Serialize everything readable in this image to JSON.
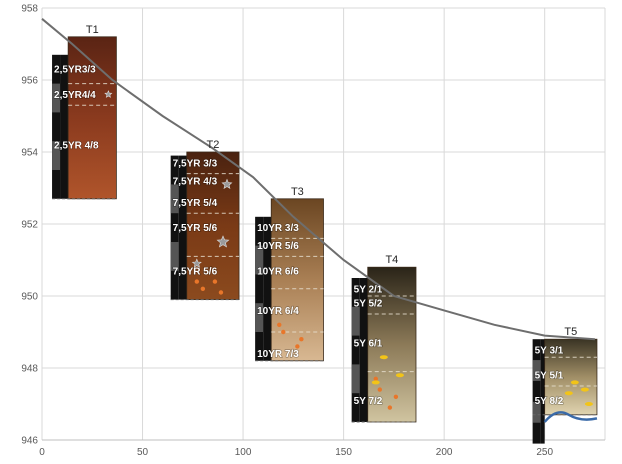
{
  "chart_data": {
    "type": "line",
    "title": "",
    "xlabel": "",
    "ylabel": "",
    "xlim": [
      0,
      280
    ],
    "ylim": [
      946,
      958
    ],
    "x_ticks": [
      "0",
      "50",
      "100",
      "150",
      "200",
      "250"
    ],
    "y_ticks": [
      "946",
      "948",
      "950",
      "952",
      "954",
      "956",
      "958"
    ],
    "grid": true,
    "series": [
      {
        "x": [
          0,
          15,
          35,
          60,
          85,
          105,
          125,
          150,
          175,
          200,
          225,
          250,
          275
        ],
        "y": [
          957.7,
          957.0,
          956.0,
          955.0,
          954.1,
          953.3,
          952.2,
          951.0,
          950.0,
          949.6,
          949.2,
          948.9,
          948.8
        ]
      }
    ],
    "columns": [
      {
        "label": "T1",
        "x_left": 13,
        "x_right": 37,
        "top": 957.2,
        "bottom": 952.7,
        "colors": [
          "#5a2414",
          "#8a3a1e",
          "#b0552b"
        ],
        "bar": {
          "x": 5,
          "top": 956.7,
          "bottom": 952.7
        },
        "horizons": [
          {
            "label": "2,5YR3/3",
            "y": 956.3
          },
          {
            "label": "2,5YR4/4",
            "y": 955.6
          },
          {
            "label": "2,5YR 4/8",
            "y": 954.2
          }
        ],
        "boundaries": [
          955.9,
          955.3
        ]
      },
      {
        "label": "T2",
        "x_left": 72,
        "x_right": 98,
        "top": 954.0,
        "bottom": 949.9,
        "colors": [
          "#4a2210",
          "#7a3a16",
          "#8b4a1e"
        ],
        "bar": {
          "x": 64,
          "top": 953.9,
          "bottom": 949.9
        },
        "horizons": [
          {
            "label": "7,5YR 3/3",
            "y": 953.7
          },
          {
            "label": "7,5YR 4/3",
            "y": 953.2
          },
          {
            "label": "7,5YR 5/4",
            "y": 952.6
          },
          {
            "label": "7,5YR 5/6",
            "y": 951.9
          },
          {
            "label": "7,5YR 5/6",
            "y": 950.7
          }
        ],
        "boundaries": [
          953.4,
          952.3,
          951.1
        ]
      },
      {
        "label": "T3",
        "x_left": 114,
        "x_right": 140,
        "top": 952.7,
        "bottom": 948.2,
        "colors": [
          "#6b4622",
          "#a97f54",
          "#d8b892"
        ],
        "bar": {
          "x": 106,
          "top": 952.2,
          "bottom": 948.2
        },
        "horizons": [
          {
            "label": "10YR 3/3",
            "y": 951.9
          },
          {
            "label": "10YR 5/6",
            "y": 951.4
          },
          {
            "label": "10YR 6/6",
            "y": 950.7
          },
          {
            "label": "10YR 6/4",
            "y": 949.6
          },
          {
            "label": "10YR 7/3",
            "y": 948.4
          }
        ],
        "boundaries": [
          951.6,
          951.1,
          950.2,
          949.0
        ]
      },
      {
        "label": "T4",
        "x_left": 162,
        "x_right": 186,
        "top": 950.8,
        "bottom": 946.5,
        "colors": [
          "#2a2418",
          "#8c7a58",
          "#d0c4a0"
        ],
        "bar": {
          "x": 154,
          "top": 950.5,
          "bottom": 946.5
        },
        "horizons": [
          {
            "label": "5Y 2/1",
            "y": 950.2
          },
          {
            "label": "5Y 5/2",
            "y": 949.8
          },
          {
            "label": "5Y 6/1",
            "y": 948.7
          },
          {
            "label": "5Y 7/2",
            "y": 947.1
          }
        ],
        "boundaries": [
          950.0,
          949.5,
          947.9
        ]
      },
      {
        "label": "T5",
        "x_left": 250,
        "x_right": 276,
        "top": 948.8,
        "bottom": 946.7,
        "colors": [
          "#3a3424",
          "#a08e66",
          "#e0d4b0"
        ],
        "bar": {
          "x": 244,
          "top": 948.8,
          "bottom": 945.9
        },
        "horizons": [
          {
            "label": "5Y 3/1",
            "y": 948.5
          },
          {
            "label": "5Y 5/1",
            "y": 947.8
          },
          {
            "label": "5Y 8/2",
            "y": 947.1
          }
        ],
        "boundaries": [
          948.3,
          947.5
        ]
      }
    ]
  }
}
